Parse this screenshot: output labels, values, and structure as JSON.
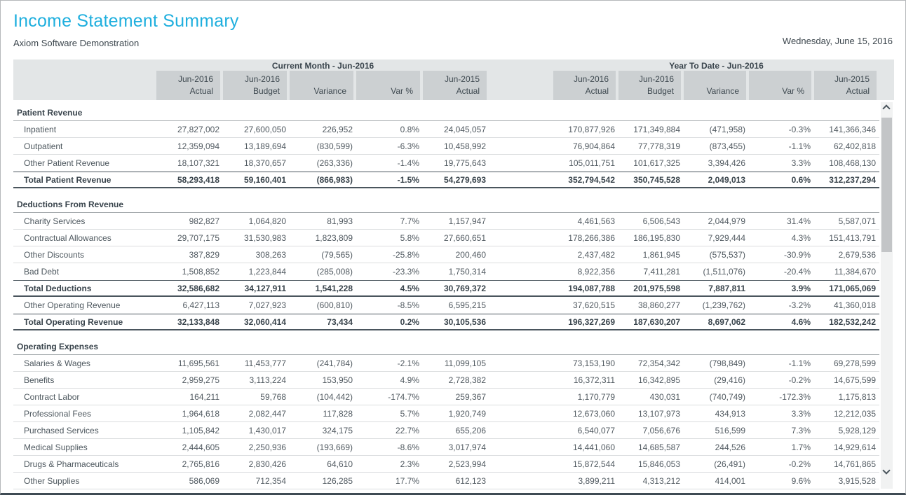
{
  "page": {
    "title": "Income Statement Summary",
    "subtitle": "Axiom Software Demonstration",
    "date": "Wednesday, June 15, 2016"
  },
  "table": {
    "groups": [
      {
        "label": "Current Month - Jun-2016"
      },
      {
        "label": "Year To Date - Jun-2016"
      }
    ],
    "columns": [
      {
        "line1": "Jun-2016",
        "line2": "Actual"
      },
      {
        "line1": "Jun-2016",
        "line2": "Budget"
      },
      {
        "line1": "",
        "line2": "Variance"
      },
      {
        "line1": "",
        "line2": "Var %"
      },
      {
        "line1": "Jun-2015",
        "line2": "Actual"
      }
    ],
    "rows": [
      {
        "type": "section",
        "label": "Patient Revenue"
      },
      {
        "type": "data",
        "label": "Inpatient",
        "cm": [
          "27,827,002",
          "27,600,050",
          "226,952",
          "0.8%",
          "24,045,057"
        ],
        "ytd": [
          "170,877,926",
          "171,349,884",
          "(471,958)",
          "-0.3%",
          "141,366,346"
        ]
      },
      {
        "type": "data",
        "label": "Outpatient",
        "cm": [
          "12,359,094",
          "13,189,694",
          "(830,599)",
          "-6.3%",
          "10,458,992"
        ],
        "ytd": [
          "76,904,864",
          "77,778,319",
          "(873,455)",
          "-1.1%",
          "62,402,818"
        ]
      },
      {
        "type": "data",
        "label": "Other Patient Revenue",
        "cm": [
          "18,107,321",
          "18,370,657",
          "(263,336)",
          "-1.4%",
          "19,775,643"
        ],
        "ytd": [
          "105,011,751",
          "101,617,325",
          "3,394,426",
          "3.3%",
          "108,468,130"
        ]
      },
      {
        "type": "total",
        "label": "Total Patient Revenue",
        "cm": [
          "58,293,418",
          "59,160,401",
          "(866,983)",
          "-1.5%",
          "54,279,693"
        ],
        "ytd": [
          "352,794,542",
          "350,745,528",
          "2,049,013",
          "0.6%",
          "312,237,294"
        ]
      },
      {
        "type": "spacer"
      },
      {
        "type": "section",
        "label": "Deductions From Revenue"
      },
      {
        "type": "data",
        "label": "Charity Services",
        "cm": [
          "982,827",
          "1,064,820",
          "81,993",
          "7.7%",
          "1,157,947"
        ],
        "ytd": [
          "4,461,563",
          "6,506,543",
          "2,044,979",
          "31.4%",
          "5,587,071"
        ]
      },
      {
        "type": "data",
        "label": "Contractual Allowances",
        "cm": [
          "29,707,175",
          "31,530,983",
          "1,823,809",
          "5.8%",
          "27,660,651"
        ],
        "ytd": [
          "178,266,386",
          "186,195,830",
          "7,929,444",
          "4.3%",
          "151,413,791"
        ]
      },
      {
        "type": "data",
        "label": "Other Discounts",
        "cm": [
          "387,829",
          "308,263",
          "(79,565)",
          "-25.8%",
          "200,460"
        ],
        "ytd": [
          "2,437,482",
          "1,861,945",
          "(575,537)",
          "-30.9%",
          "2,679,536"
        ]
      },
      {
        "type": "data",
        "label": "Bad Debt",
        "cm": [
          "1,508,852",
          "1,223,844",
          "(285,008)",
          "-23.3%",
          "1,750,314"
        ],
        "ytd": [
          "8,922,356",
          "7,411,281",
          "(1,511,076)",
          "-20.4%",
          "11,384,670"
        ]
      },
      {
        "type": "total",
        "label": "Total Deductions",
        "cm": [
          "32,586,682",
          "34,127,911",
          "1,541,228",
          "4.5%",
          "30,769,372"
        ],
        "ytd": [
          "194,087,788",
          "201,975,598",
          "7,887,811",
          "3.9%",
          "171,065,069"
        ]
      },
      {
        "type": "data",
        "label": "Other Operating Revenue",
        "cm": [
          "6,427,113",
          "7,027,923",
          "(600,810)",
          "-8.5%",
          "6,595,215"
        ],
        "ytd": [
          "37,620,515",
          "38,860,277",
          "(1,239,762)",
          "-3.2%",
          "41,360,018"
        ]
      },
      {
        "type": "total",
        "label": "Total Operating Revenue",
        "cm": [
          "32,133,848",
          "32,060,414",
          "73,434",
          "0.2%",
          "30,105,536"
        ],
        "ytd": [
          "196,327,269",
          "187,630,207",
          "8,697,062",
          "4.6%",
          "182,532,242"
        ]
      },
      {
        "type": "spacer"
      },
      {
        "type": "section",
        "label": "Operating Expenses"
      },
      {
        "type": "data",
        "label": "Salaries & Wages",
        "cm": [
          "11,695,561",
          "11,453,777",
          "(241,784)",
          "-2.1%",
          "11,099,105"
        ],
        "ytd": [
          "73,153,190",
          "72,354,342",
          "(798,849)",
          "-1.1%",
          "69,278,599"
        ]
      },
      {
        "type": "data",
        "label": "Benefits",
        "cm": [
          "2,959,275",
          "3,113,224",
          "153,950",
          "4.9%",
          "2,728,382"
        ],
        "ytd": [
          "16,372,311",
          "16,342,895",
          "(29,416)",
          "-0.2%",
          "14,675,599"
        ]
      },
      {
        "type": "data",
        "label": "Contract Labor",
        "cm": [
          "164,211",
          "59,768",
          "(104,442)",
          "-174.7%",
          "259,367"
        ],
        "ytd": [
          "1,170,779",
          "430,031",
          "(740,749)",
          "-172.3%",
          "1,175,813"
        ]
      },
      {
        "type": "data",
        "label": "Professional Fees",
        "cm": [
          "1,964,618",
          "2,082,447",
          "117,828",
          "5.7%",
          "1,920,749"
        ],
        "ytd": [
          "12,673,060",
          "13,107,973",
          "434,913",
          "3.3%",
          "12,212,035"
        ]
      },
      {
        "type": "data",
        "label": "Purchased Services",
        "cm": [
          "1,105,842",
          "1,430,017",
          "324,175",
          "22.7%",
          "655,206"
        ],
        "ytd": [
          "6,540,077",
          "7,056,676",
          "516,599",
          "7.3%",
          "5,928,129"
        ]
      },
      {
        "type": "data",
        "label": "Medical Supplies",
        "cm": [
          "2,444,605",
          "2,250,936",
          "(193,669)",
          "-8.6%",
          "3,017,974"
        ],
        "ytd": [
          "14,441,060",
          "14,685,587",
          "244,526",
          "1.7%",
          "14,929,614"
        ]
      },
      {
        "type": "data",
        "label": "Drugs & Pharmaceuticals",
        "cm": [
          "2,765,816",
          "2,830,426",
          "64,610",
          "2.3%",
          "2,523,994"
        ],
        "ytd": [
          "15,872,544",
          "15,846,053",
          "(26,491)",
          "-0.2%",
          "14,761,865"
        ]
      },
      {
        "type": "data",
        "label": "Other Supplies",
        "cm": [
          "586,069",
          "712,354",
          "126,285",
          "17.7%",
          "612,123"
        ],
        "ytd": [
          "3,899,211",
          "4,313,212",
          "414,001",
          "9.6%",
          "3,915,528"
        ]
      }
    ]
  },
  "scrollbar": {
    "up_icon": "chevron-up",
    "down_icon": "chevron-down"
  },
  "colors": {
    "title_accent": "#1fafde",
    "header_group_bg": "#e3e6e7",
    "header_cell_bg": "#ccd0d2",
    "dark_border": "#4a555d",
    "text_dark": "#39444c",
    "text_body": "#4d575e"
  }
}
